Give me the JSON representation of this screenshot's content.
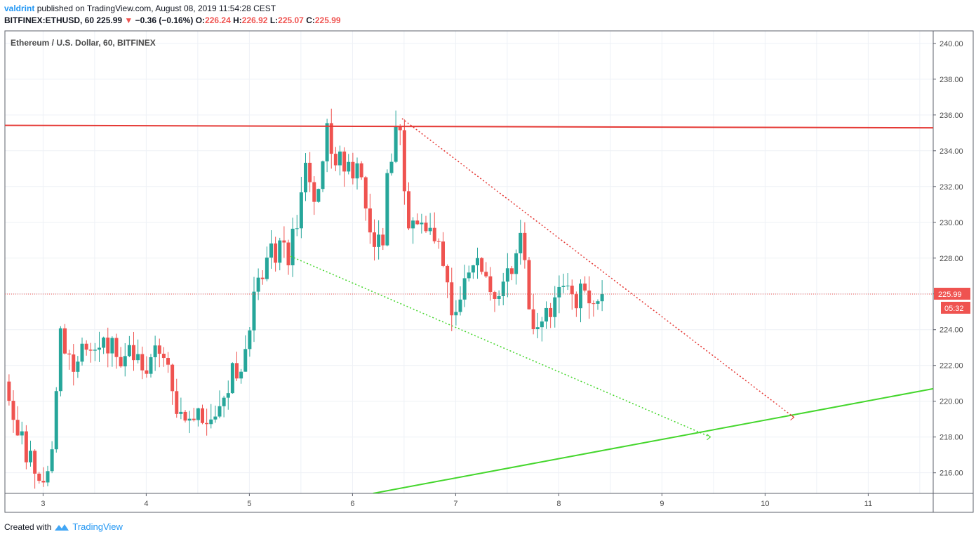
{
  "header": {
    "username": "valdrint",
    "published_text": "published on TradingView.com, August 08, 2019 11:54:28 CEST",
    "symbol": "BITFINEX:ETHUSD, 60",
    "last": "225.99",
    "change": "−0.36 (−0.16%)",
    "o_label": "O:",
    "o": "226.24",
    "h_label": "H:",
    "h": "226.92",
    "l_label": "L:",
    "l": "225.07",
    "c_label": "C:",
    "c": "225.99"
  },
  "chart_data": {
    "type": "candlestick",
    "legend": "Ethereum / U.S. Dollar, 60, BITFINEX",
    "x_ticks": [
      "3",
      "4",
      "5",
      "6",
      "7",
      "8",
      "9",
      "10",
      "11"
    ],
    "x_tick_values": [
      3,
      4,
      5,
      6,
      7,
      8,
      9,
      10,
      11
    ],
    "xlim": [
      2.63,
      11.63
    ],
    "y_ticks": [
      "216.00",
      "218.00",
      "220.00",
      "222.00",
      "224.00",
      "226.00",
      "228.00",
      "230.00",
      "232.00",
      "234.00",
      "236.00",
      "238.00",
      "240.00"
    ],
    "ylim": [
      214.85,
      240.7
    ],
    "last_price_label": "225.99",
    "last_price": 225.99,
    "countdown_label": "05:32",
    "colors": {
      "up": "#26a69a",
      "down": "#ef5350",
      "resistance": "#e53935",
      "support": "#44d62c",
      "grid": "#eef1f6"
    },
    "anchor_points": [
      {
        "x": 2.67,
        "y": 220.8
      },
      {
        "x": 2.75,
        "y": 218.0
      },
      {
        "x": 2.9,
        "y": 216.5
      },
      {
        "x": 3.0,
        "y": 216.0
      },
      {
        "x": 3.1,
        "y": 217.5
      },
      {
        "x": 3.16,
        "y": 223.5
      },
      {
        "x": 3.3,
        "y": 222.4
      },
      {
        "x": 3.45,
        "y": 223.0
      },
      {
        "x": 3.65,
        "y": 222.8
      },
      {
        "x": 3.9,
        "y": 222.2
      },
      {
        "x": 4.15,
        "y": 222.5
      },
      {
        "x": 4.22,
        "y": 222.2
      },
      {
        "x": 4.3,
        "y": 219.5
      },
      {
        "x": 4.45,
        "y": 218.9
      },
      {
        "x": 4.6,
        "y": 219.0
      },
      {
        "x": 4.68,
        "y": 219.5
      },
      {
        "x": 4.8,
        "y": 221.3
      },
      {
        "x": 4.95,
        "y": 222.0
      },
      {
        "x": 5.05,
        "y": 225.5
      },
      {
        "x": 5.2,
        "y": 228.5
      },
      {
        "x": 5.4,
        "y": 228.3
      },
      {
        "x": 5.55,
        "y": 233.5
      },
      {
        "x": 5.65,
        "y": 231.5
      },
      {
        "x": 5.75,
        "y": 235.0
      },
      {
        "x": 5.95,
        "y": 232.5
      },
      {
        "x": 6.05,
        "y": 233.5
      },
      {
        "x": 6.15,
        "y": 229.5
      },
      {
        "x": 6.28,
        "y": 228.3
      },
      {
        "x": 6.35,
        "y": 233.5
      },
      {
        "x": 6.47,
        "y": 235.5
      },
      {
        "x": 6.52,
        "y": 230.5
      },
      {
        "x": 6.65,
        "y": 230.3
      },
      {
        "x": 6.85,
        "y": 228.8
      },
      {
        "x": 6.95,
        "y": 225.0
      },
      {
        "x": 7.08,
        "y": 226.5
      },
      {
        "x": 7.22,
        "y": 227.5
      },
      {
        "x": 7.4,
        "y": 225.5
      },
      {
        "x": 7.6,
        "y": 228.5
      },
      {
        "x": 7.65,
        "y": 230.0
      },
      {
        "x": 7.72,
        "y": 224.5
      },
      {
        "x": 7.85,
        "y": 224.5
      },
      {
        "x": 7.98,
        "y": 226.0
      },
      {
        "x": 8.15,
        "y": 225.5
      },
      {
        "x": 8.28,
        "y": 226.5
      },
      {
        "x": 8.36,
        "y": 225.0
      },
      {
        "x": 8.43,
        "y": 226.5
      },
      {
        "x": 8.46,
        "y": 225.99
      }
    ],
    "lines": [
      {
        "name": "resistance",
        "style": "solid",
        "x1": 2.63,
        "y1": 235.42,
        "x2": 11.63,
        "y2": 235.28
      },
      {
        "name": "support",
        "style": "solid",
        "x1": 6.2,
        "y1": 214.85,
        "x2": 11.63,
        "y2": 220.7
      },
      {
        "name": "upper-trend",
        "style": "dotted",
        "x1": 6.48,
        "y1": 235.8,
        "x2": 10.28,
        "y2": 219.1
      },
      {
        "name": "lower-trend",
        "style": "dotted",
        "x1": 5.4,
        "y1": 228.1,
        "x2": 9.47,
        "y2": 218.0
      }
    ]
  },
  "footer": {
    "created_with": "Created with",
    "brand": "TradingView"
  }
}
